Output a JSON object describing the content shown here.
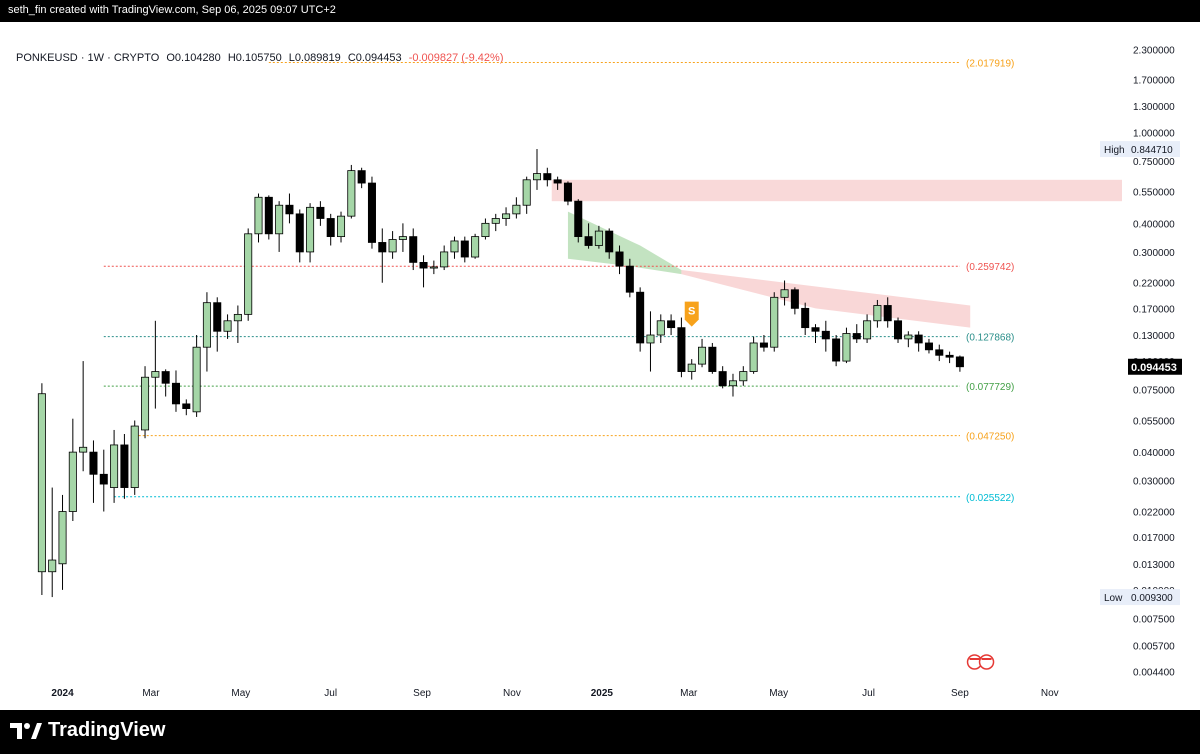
{
  "header": {
    "attribution": "seth_fin created with TradingView.com, Sep 06, 2025 09:07 UTC+2",
    "symbol": "PONKEUSD",
    "interval": "1W",
    "market": "CRYPTO",
    "open": "O0.104280",
    "high": "H0.105750",
    "low": "L0.089819",
    "close": "C0.094453",
    "change": "-0.009827 (-9.42%)",
    "change_color": "#ef5350"
  },
  "footer": {
    "brand": "TradingView"
  },
  "colors": {
    "bull_fill": "#a5d6a7",
    "bull_border": "#000000",
    "bear_fill": "#000000",
    "zone_red": "#f7c9c9",
    "zone_green": "#b8deb6",
    "accent_orange": "#f7a21b"
  },
  "chart_data": {
    "type": "candlestick",
    "scale": "log",
    "y_axis": {
      "ticks": [
        "2.300000",
        "1.700000",
        "1.300000",
        "1.000000",
        "0.750000",
        "0.550000",
        "0.400000",
        "0.300000",
        "0.220000",
        "0.170000",
        "0.130000",
        "0.100000",
        "0.075000",
        "0.055000",
        "0.040000",
        "0.030000",
        "0.022000",
        "0.017000",
        "0.013000",
        "0.010000",
        "0.007500",
        "0.005700",
        "0.004400"
      ],
      "tick_values": [
        2.3,
        1.7,
        1.3,
        1.0,
        0.75,
        0.55,
        0.4,
        0.3,
        0.22,
        0.17,
        0.13,
        0.1,
        0.075,
        0.055,
        0.04,
        0.03,
        0.022,
        0.017,
        0.013,
        0.01,
        0.0075,
        0.0057,
        0.0044
      ],
      "range": [
        0.0038,
        2.8
      ]
    },
    "x_axis": {
      "labels": [
        "2024",
        "Mar",
        "May",
        "Jul",
        "Sep",
        "Nov",
        "2025",
        "Mar",
        "May",
        "Jul",
        "Sep",
        "Nov"
      ],
      "label_dates": [
        "2024-01-01",
        "2024-03-01",
        "2024-05-01",
        "2024-07-01",
        "2024-09-01",
        "2024-11-01",
        "2025-01-01",
        "2025-03-01",
        "2025-05-01",
        "2025-07-01",
        "2025-09-01",
        "2025-11-01"
      ],
      "bold": [
        true,
        false,
        false,
        false,
        false,
        false,
        true,
        false,
        false,
        false,
        false,
        false
      ],
      "range": [
        "2023-11-25",
        "2025-12-20"
      ]
    },
    "price_labels": [
      {
        "label": "High",
        "value": "0.844710",
        "price": 0.84471
      },
      {
        "label": "Low",
        "value": "0.009300",
        "price": 0.0093
      },
      {
        "label": "",
        "value": "0.094453",
        "price": 0.094453,
        "current": true
      }
    ],
    "levels": [
      {
        "value": 2.017919,
        "label": "(2.017919)",
        "color": "#f7a21b",
        "start": "2024-05-20"
      },
      {
        "value": 0.259742,
        "label": "(0.259742)",
        "color": "#ef5350",
        "start": "2024-01-29"
      },
      {
        "value": 0.127868,
        "label": "(0.127868)",
        "color": "#2a8f8a",
        "start": "2024-01-29"
      },
      {
        "value": 0.077729,
        "label": "(0.077729)",
        "color": "#43a047",
        "start": "2024-01-29"
      },
      {
        "value": 0.04725,
        "label": "(0.047250)",
        "color": "#f7a21b",
        "start": "2024-02-19"
      },
      {
        "value": 0.025522,
        "label": "(0.025522)",
        "color": "#00bcd4",
        "start": "2024-02-05"
      }
    ],
    "signal": {
      "label": "S",
      "date": "2025-03-03",
      "price": 0.14
    },
    "candles": [
      {
        "t": "2023-12-18",
        "o": 0.012,
        "h": 0.08,
        "l": 0.0095,
        "c": 0.072
      },
      {
        "t": "2023-12-25",
        "o": 0.012,
        "h": 0.028,
        "l": 0.0093,
        "c": 0.0135
      },
      {
        "t": "2024-01-01",
        "o": 0.013,
        "h": 0.026,
        "l": 0.01,
        "c": 0.022
      },
      {
        "t": "2024-01-08",
        "o": 0.022,
        "h": 0.056,
        "l": 0.02,
        "c": 0.04
      },
      {
        "t": "2024-01-15",
        "o": 0.04,
        "h": 0.1,
        "l": 0.033,
        "c": 0.042
      },
      {
        "t": "2024-01-22",
        "o": 0.04,
        "h": 0.045,
        "l": 0.024,
        "c": 0.032
      },
      {
        "t": "2024-01-29",
        "o": 0.032,
        "h": 0.041,
        "l": 0.022,
        "c": 0.029
      },
      {
        "t": "2024-02-05",
        "o": 0.028,
        "h": 0.05,
        "l": 0.024,
        "c": 0.043
      },
      {
        "t": "2024-02-12",
        "o": 0.043,
        "h": 0.048,
        "l": 0.025,
        "c": 0.028
      },
      {
        "t": "2024-02-19",
        "o": 0.028,
        "h": 0.055,
        "l": 0.026,
        "c": 0.052
      },
      {
        "t": "2024-02-26",
        "o": 0.05,
        "h": 0.095,
        "l": 0.046,
        "c": 0.085
      },
      {
        "t": "2024-03-04",
        "o": 0.085,
        "h": 0.15,
        "l": 0.062,
        "c": 0.09
      },
      {
        "t": "2024-03-11",
        "o": 0.09,
        "h": 0.092,
        "l": 0.07,
        "c": 0.08
      },
      {
        "t": "2024-03-18",
        "o": 0.08,
        "h": 0.091,
        "l": 0.06,
        "c": 0.065
      },
      {
        "t": "2024-03-25",
        "o": 0.065,
        "h": 0.068,
        "l": 0.058,
        "c": 0.062
      },
      {
        "t": "2024-04-01",
        "o": 0.06,
        "h": 0.13,
        "l": 0.057,
        "c": 0.115
      },
      {
        "t": "2024-04-08",
        "o": 0.115,
        "h": 0.2,
        "l": 0.09,
        "c": 0.18
      },
      {
        "t": "2024-04-15",
        "o": 0.18,
        "h": 0.19,
        "l": 0.11,
        "c": 0.135
      },
      {
        "t": "2024-04-22",
        "o": 0.135,
        "h": 0.16,
        "l": 0.125,
        "c": 0.15
      },
      {
        "t": "2024-04-29",
        "o": 0.15,
        "h": 0.175,
        "l": 0.12,
        "c": 0.16
      },
      {
        "t": "2024-05-06",
        "o": 0.16,
        "h": 0.38,
        "l": 0.15,
        "c": 0.36
      },
      {
        "t": "2024-05-13",
        "o": 0.36,
        "h": 0.54,
        "l": 0.33,
        "c": 0.52
      },
      {
        "t": "2024-05-20",
        "o": 0.52,
        "h": 0.53,
        "l": 0.34,
        "c": 0.36
      },
      {
        "t": "2024-05-27",
        "o": 0.36,
        "h": 0.5,
        "l": 0.3,
        "c": 0.48
      },
      {
        "t": "2024-06-03",
        "o": 0.48,
        "h": 0.54,
        "l": 0.4,
        "c": 0.44
      },
      {
        "t": "2024-06-10",
        "o": 0.44,
        "h": 0.46,
        "l": 0.27,
        "c": 0.3
      },
      {
        "t": "2024-06-17",
        "o": 0.3,
        "h": 0.49,
        "l": 0.27,
        "c": 0.47
      },
      {
        "t": "2024-06-24",
        "o": 0.47,
        "h": 0.5,
        "l": 0.39,
        "c": 0.42
      },
      {
        "t": "2024-07-01",
        "o": 0.42,
        "h": 0.44,
        "l": 0.32,
        "c": 0.35
      },
      {
        "t": "2024-07-08",
        "o": 0.35,
        "h": 0.45,
        "l": 0.33,
        "c": 0.43
      },
      {
        "t": "2024-07-15",
        "o": 0.43,
        "h": 0.72,
        "l": 0.42,
        "c": 0.68
      },
      {
        "t": "2024-07-22",
        "o": 0.68,
        "h": 0.7,
        "l": 0.57,
        "c": 0.6
      },
      {
        "t": "2024-07-29",
        "o": 0.6,
        "h": 0.64,
        "l": 0.31,
        "c": 0.33
      },
      {
        "t": "2024-08-05",
        "o": 0.33,
        "h": 0.38,
        "l": 0.22,
        "c": 0.3
      },
      {
        "t": "2024-08-12",
        "o": 0.3,
        "h": 0.37,
        "l": 0.28,
        "c": 0.34
      },
      {
        "t": "2024-08-19",
        "o": 0.34,
        "h": 0.4,
        "l": 0.3,
        "c": 0.35
      },
      {
        "t": "2024-08-26",
        "o": 0.35,
        "h": 0.38,
        "l": 0.25,
        "c": 0.27
      },
      {
        "t": "2024-09-02",
        "o": 0.27,
        "h": 0.29,
        "l": 0.21,
        "c": 0.255
      },
      {
        "t": "2024-09-09",
        "o": 0.255,
        "h": 0.275,
        "l": 0.24,
        "c": 0.258
      },
      {
        "t": "2024-09-16",
        "o": 0.258,
        "h": 0.32,
        "l": 0.25,
        "c": 0.3
      },
      {
        "t": "2024-09-23",
        "o": 0.3,
        "h": 0.35,
        "l": 0.28,
        "c": 0.335
      },
      {
        "t": "2024-09-30",
        "o": 0.335,
        "h": 0.35,
        "l": 0.27,
        "c": 0.285
      },
      {
        "t": "2024-10-07",
        "o": 0.285,
        "h": 0.36,
        "l": 0.28,
        "c": 0.35
      },
      {
        "t": "2024-10-14",
        "o": 0.35,
        "h": 0.42,
        "l": 0.34,
        "c": 0.4
      },
      {
        "t": "2024-10-21",
        "o": 0.4,
        "h": 0.44,
        "l": 0.37,
        "c": 0.42
      },
      {
        "t": "2024-10-28",
        "o": 0.42,
        "h": 0.47,
        "l": 0.39,
        "c": 0.44
      },
      {
        "t": "2024-11-04",
        "o": 0.44,
        "h": 0.52,
        "l": 0.42,
        "c": 0.48
      },
      {
        "t": "2024-11-11",
        "o": 0.48,
        "h": 0.64,
        "l": 0.44,
        "c": 0.62
      },
      {
        "t": "2024-11-18",
        "o": 0.62,
        "h": 0.845,
        "l": 0.56,
        "c": 0.66
      },
      {
        "t": "2024-11-25",
        "o": 0.66,
        "h": 0.7,
        "l": 0.58,
        "c": 0.62
      },
      {
        "t": "2024-12-02",
        "o": 0.62,
        "h": 0.64,
        "l": 0.56,
        "c": 0.6
      },
      {
        "t": "2024-12-09",
        "o": 0.6,
        "h": 0.61,
        "l": 0.48,
        "c": 0.5
      },
      {
        "t": "2024-12-16",
        "o": 0.5,
        "h": 0.51,
        "l": 0.33,
        "c": 0.35
      },
      {
        "t": "2024-12-23",
        "o": 0.35,
        "h": 0.4,
        "l": 0.31,
        "c": 0.32
      },
      {
        "t": "2024-12-30",
        "o": 0.32,
        "h": 0.39,
        "l": 0.31,
        "c": 0.37
      },
      {
        "t": "2025-01-06",
        "o": 0.37,
        "h": 0.38,
        "l": 0.28,
        "c": 0.3
      },
      {
        "t": "2025-01-13",
        "o": 0.3,
        "h": 0.32,
        "l": 0.24,
        "c": 0.26
      },
      {
        "t": "2025-01-20",
        "o": 0.26,
        "h": 0.28,
        "l": 0.19,
        "c": 0.2
      },
      {
        "t": "2025-01-27",
        "o": 0.2,
        "h": 0.21,
        "l": 0.11,
        "c": 0.12
      },
      {
        "t": "2025-02-03",
        "o": 0.12,
        "h": 0.165,
        "l": 0.09,
        "c": 0.13
      },
      {
        "t": "2025-02-10",
        "o": 0.13,
        "h": 0.16,
        "l": 0.12,
        "c": 0.15
      },
      {
        "t": "2025-02-17",
        "o": 0.15,
        "h": 0.16,
        "l": 0.13,
        "c": 0.14
      },
      {
        "t": "2025-02-24",
        "o": 0.14,
        "h": 0.155,
        "l": 0.085,
        "c": 0.09
      },
      {
        "t": "2025-03-03",
        "o": 0.09,
        "h": 0.102,
        "l": 0.083,
        "c": 0.097
      },
      {
        "t": "2025-03-10",
        "o": 0.097,
        "h": 0.125,
        "l": 0.094,
        "c": 0.115
      },
      {
        "t": "2025-03-17",
        "o": 0.115,
        "h": 0.12,
        "l": 0.088,
        "c": 0.09
      },
      {
        "t": "2025-03-24",
        "o": 0.09,
        "h": 0.095,
        "l": 0.076,
        "c": 0.078
      },
      {
        "t": "2025-03-31",
        "o": 0.078,
        "h": 0.088,
        "l": 0.07,
        "c": 0.082
      },
      {
        "t": "2025-04-07",
        "o": 0.082,
        "h": 0.095,
        "l": 0.078,
        "c": 0.09
      },
      {
        "t": "2025-04-14",
        "o": 0.09,
        "h": 0.128,
        "l": 0.088,
        "c": 0.12
      },
      {
        "t": "2025-04-21",
        "o": 0.12,
        "h": 0.13,
        "l": 0.11,
        "c": 0.115
      },
      {
        "t": "2025-04-28",
        "o": 0.115,
        "h": 0.2,
        "l": 0.11,
        "c": 0.19
      },
      {
        "t": "2025-05-05",
        "o": 0.19,
        "h": 0.225,
        "l": 0.175,
        "c": 0.205
      },
      {
        "t": "2025-05-12",
        "o": 0.205,
        "h": 0.21,
        "l": 0.16,
        "c": 0.17
      },
      {
        "t": "2025-05-19",
        "o": 0.17,
        "h": 0.18,
        "l": 0.13,
        "c": 0.14
      },
      {
        "t": "2025-05-26",
        "o": 0.14,
        "h": 0.145,
        "l": 0.12,
        "c": 0.135
      },
      {
        "t": "2025-06-02",
        "o": 0.135,
        "h": 0.15,
        "l": 0.11,
        "c": 0.125
      },
      {
        "t": "2025-06-09",
        "o": 0.125,
        "h": 0.13,
        "l": 0.095,
        "c": 0.1
      },
      {
        "t": "2025-06-16",
        "o": 0.1,
        "h": 0.14,
        "l": 0.098,
        "c": 0.132
      },
      {
        "t": "2025-06-23",
        "o": 0.132,
        "h": 0.145,
        "l": 0.12,
        "c": 0.125
      },
      {
        "t": "2025-06-30",
        "o": 0.125,
        "h": 0.16,
        "l": 0.12,
        "c": 0.15
      },
      {
        "t": "2025-07-07",
        "o": 0.15,
        "h": 0.185,
        "l": 0.14,
        "c": 0.175
      },
      {
        "t": "2025-07-14",
        "o": 0.175,
        "h": 0.19,
        "l": 0.14,
        "c": 0.15
      },
      {
        "t": "2025-07-21",
        "o": 0.15,
        "h": 0.155,
        "l": 0.12,
        "c": 0.125
      },
      {
        "t": "2025-07-28",
        "o": 0.125,
        "h": 0.135,
        "l": 0.115,
        "c": 0.13
      },
      {
        "t": "2025-08-04",
        "o": 0.13,
        "h": 0.135,
        "l": 0.11,
        "c": 0.12
      },
      {
        "t": "2025-08-11",
        "o": 0.12,
        "h": 0.125,
        "l": 0.108,
        "c": 0.112
      },
      {
        "t": "2025-08-18",
        "o": 0.112,
        "h": 0.118,
        "l": 0.1,
        "c": 0.106
      },
      {
        "t": "2025-08-25",
        "o": 0.106,
        "h": 0.11,
        "l": 0.098,
        "c": 0.104
      },
      {
        "t": "2025-09-01",
        "o": 0.10428,
        "h": 0.10575,
        "l": 0.089819,
        "c": 0.094453
      }
    ]
  }
}
